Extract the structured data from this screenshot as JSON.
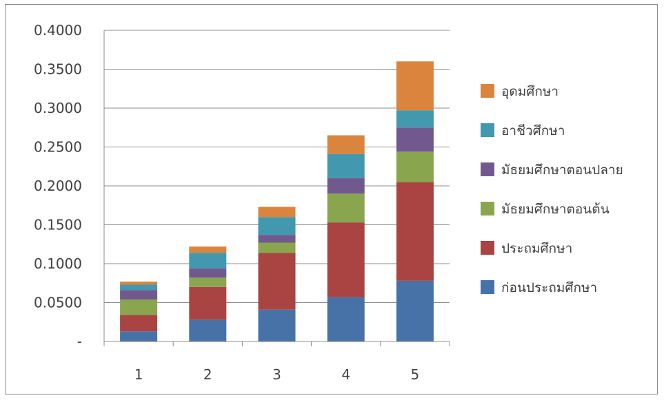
{
  "chart_data": {
    "type": "bar",
    "stacked": true,
    "categories": [
      "1",
      "2",
      "3",
      "4",
      "5"
    ],
    "ylim": [
      0,
      0.4
    ],
    "y_ticks": [
      0,
      0.05,
      0.1,
      0.15,
      0.2,
      0.25,
      0.3,
      0.35,
      0.4
    ],
    "y_tick_labels": [
      "-",
      "0.0500",
      "0.1000",
      "0.1500",
      "0.2000",
      "0.2500",
      "0.3000",
      "0.3500",
      "0.4000"
    ],
    "grid": true,
    "legend_position": "right",
    "series": [
      {
        "name": "ก่อนประถมศึกษา",
        "color": "#4672A8",
        "values": [
          0.013,
          0.028,
          0.041,
          0.057,
          0.078
        ]
      },
      {
        "name": "ประถมศึกษา",
        "color": "#A94442",
        "values": [
          0.021,
          0.042,
          0.073,
          0.096,
          0.127
        ]
      },
      {
        "name": "มัธยมศึกษาตอนต้น",
        "color": "#89A64E",
        "values": [
          0.02,
          0.012,
          0.013,
          0.037,
          0.039
        ]
      },
      {
        "name": "มัธยมศึกษาตอนปลาย",
        "color": "#71598E",
        "values": [
          0.012,
          0.012,
          0.01,
          0.02,
          0.031
        ]
      },
      {
        "name": "อาชีวศึกษา",
        "color": "#4198AF",
        "values": [
          0.007,
          0.02,
          0.023,
          0.031,
          0.022
        ]
      },
      {
        "name": "อุดมศึกษา",
        "color": "#DB843D",
        "values": [
          0.004,
          0.008,
          0.013,
          0.024,
          0.063
        ]
      }
    ]
  }
}
